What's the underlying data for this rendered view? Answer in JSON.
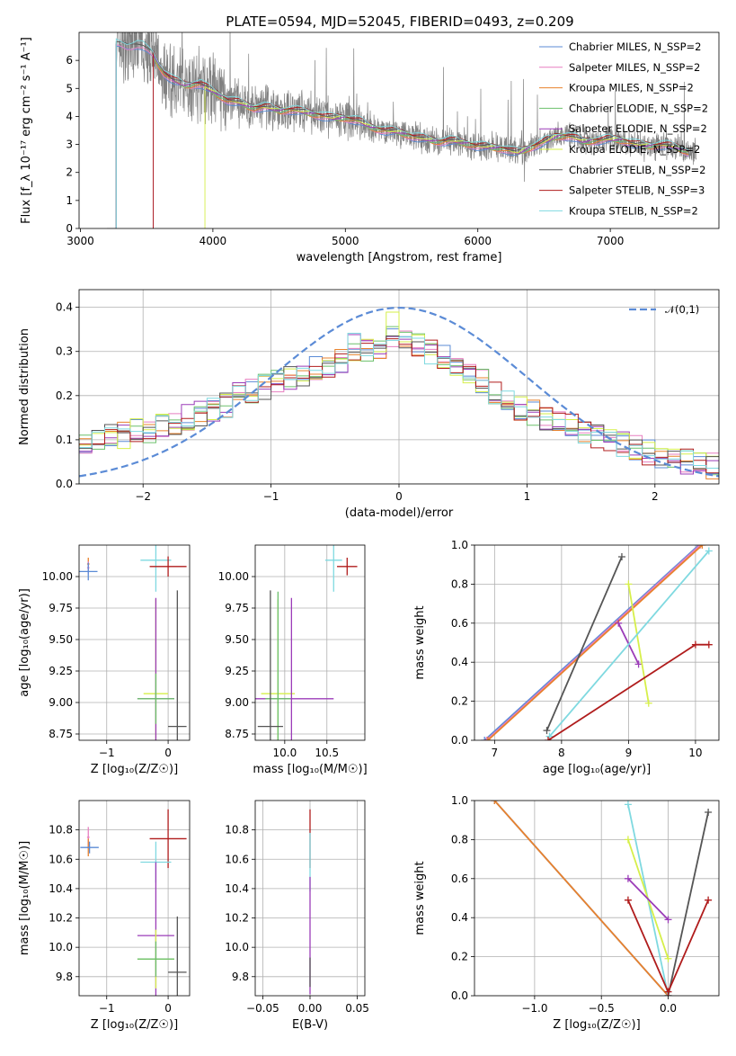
{
  "figure_title": "PLATE=0594, MJD=52045, FIBERID=0493, z=0.209",
  "colors": {
    "chabrier_miles": "#5b8bd6",
    "salpeter_miles": "#e87fc0",
    "kroupa_miles": "#e8822d",
    "chabrier_elodie": "#6cc06c",
    "salpeter_elodie": "#9b3cb8",
    "kroupa_elodie": "#d6ef4a",
    "chabrier_stelib": "#555555",
    "salpeter_stelib": "#b01c1c",
    "kroupa_stelib": "#7fd9e0",
    "data": "#808080",
    "normal": "#5b8bd6"
  },
  "chart_data": [
    {
      "id": "spectrum",
      "type": "line",
      "xlabel": "wavelength [Angstrom, rest frame]",
      "ylabel": "Flux [f_λ 10⁻¹⁷ erg cm⁻² s⁻¹ A⁻¹]",
      "xlim": [
        2990,
        7820
      ],
      "ylim": [
        0,
        7
      ],
      "xticks": [
        3000,
        4000,
        5000,
        6000,
        7000
      ],
      "yticks": [
        0,
        1,
        2,
        3,
        4,
        5,
        6
      ],
      "grid": false,
      "legend": "upper right",
      "series": [
        {
          "name": "Chabrier MILES, N_SSP=2",
          "ckey": "chabrier_miles"
        },
        {
          "name": "Salpeter MILES, N_SSP=2",
          "ckey": "salpeter_miles"
        },
        {
          "name": "Kroupa MILES, N_SSP=2",
          "ckey": "kroupa_miles"
        },
        {
          "name": "Chabrier ELODIE, N_SSP=2",
          "ckey": "chabrier_elodie"
        },
        {
          "name": "Salpeter ELODIE, N_SSP=2",
          "ckey": "salpeter_elodie"
        },
        {
          "name": "Kroupa ELODIE, N_SSP=2",
          "ckey": "kroupa_elodie"
        },
        {
          "name": "Chabrier STELIB, N_SSP=2",
          "ckey": "chabrier_stelib"
        },
        {
          "name": "Salpeter STELIB, N_SSP=3",
          "ckey": "salpeter_stelib"
        },
        {
          "name": "Kroupa STELIB, N_SSP=2",
          "ckey": "kroupa_stelib"
        }
      ],
      "model_continuum": [
        [
          3270,
          6.6
        ],
        [
          3350,
          6.5
        ],
        [
          3450,
          6.6
        ],
        [
          3550,
          6.2
        ],
        [
          3620,
          5.6
        ],
        [
          3700,
          5.3
        ],
        [
          3800,
          5.1
        ],
        [
          3900,
          5.2
        ],
        [
          4000,
          4.9
        ],
        [
          4100,
          4.6
        ],
        [
          4200,
          4.5
        ],
        [
          4300,
          4.3
        ],
        [
          4400,
          4.35
        ],
        [
          4500,
          4.2
        ],
        [
          4600,
          4.25
        ],
        [
          4700,
          4.15
        ],
        [
          4800,
          4.05
        ],
        [
          4900,
          3.95
        ],
        [
          5000,
          3.95
        ],
        [
          5100,
          3.85
        ],
        [
          5200,
          3.6
        ],
        [
          5300,
          3.5
        ],
        [
          5400,
          3.45
        ],
        [
          5500,
          3.3
        ],
        [
          5600,
          3.2
        ],
        [
          5700,
          3.1
        ],
        [
          5800,
          3.15
        ],
        [
          5900,
          3.05
        ],
        [
          6000,
          2.95
        ],
        [
          6100,
          2.9
        ],
        [
          6200,
          2.85
        ],
        [
          6300,
          2.7
        ],
        [
          6400,
          2.9
        ],
        [
          6500,
          3.1
        ],
        [
          6600,
          3.3
        ],
        [
          6700,
          3.3
        ],
        [
          6800,
          3.1
        ],
        [
          6900,
          3.15
        ],
        [
          7000,
          3.2
        ],
        [
          7100,
          3.15
        ],
        [
          7200,
          3.0
        ],
        [
          7300,
          2.95
        ],
        [
          7400,
          3.0
        ],
        [
          7500,
          2.9
        ],
        [
          7600,
          2.7
        ]
      ],
      "model_starts": [
        3270,
        3270,
        3550,
        3550,
        3550,
        3940,
        3270,
        3550,
        3270
      ]
    },
    {
      "id": "residuals",
      "type": "histogram",
      "xlabel": "(data-model)/error",
      "ylabel": "Normed distribution",
      "xlim": [
        -2.5,
        2.5
      ],
      "ylim": [
        0,
        0.44
      ],
      "xticks": [
        -2,
        -1,
        0,
        1,
        2
      ],
      "yticks": [
        0.0,
        0.1,
        0.2,
        0.3,
        0.4
      ],
      "grid": true,
      "bins": 50,
      "reference": {
        "label": "𝒩(0,1)",
        "mean": 0,
        "sigma": 1
      },
      "histogram_envelope": [
        0.09,
        0.1,
        0.11,
        0.11,
        0.12,
        0.12,
        0.13,
        0.14,
        0.15,
        0.16,
        0.17,
        0.18,
        0.2,
        0.21,
        0.22,
        0.23,
        0.24,
        0.25,
        0.26,
        0.27,
        0.28,
        0.29,
        0.3,
        0.31,
        0.32,
        0.32,
        0.31,
        0.3,
        0.29,
        0.27,
        0.25,
        0.23,
        0.21,
        0.19,
        0.17,
        0.16,
        0.15,
        0.14,
        0.13,
        0.12,
        0.11,
        0.1,
        0.09,
        0.08,
        0.07,
        0.06,
        0.06,
        0.05,
        0.05,
        0.04
      ]
    },
    {
      "id": "age_vs_Z",
      "type": "scatter",
      "xlabel": "Z [log₁₀(Z/Z☉)]",
      "ylabel": "age  [log₁₀(age/yr)]",
      "xlim": [
        -1.45,
        0.35
      ],
      "ylim": [
        8.7,
        10.25
      ],
      "xticks": [
        -1,
        0
      ],
      "yticks": [
        8.75,
        9.0,
        9.25,
        9.5,
        9.75,
        10.0
      ],
      "grid": true,
      "points": [
        {
          "ckey": "kroupa_miles",
          "x": -1.3,
          "y": 10.1,
          "xerr": 0.02,
          "yerr": 0.05
        },
        {
          "ckey": "salpeter_miles",
          "x": -1.3,
          "y": 10.07,
          "xerr": 0.02,
          "yerr": 0.05
        },
        {
          "ckey": "chabrier_miles",
          "x": -1.3,
          "y": 10.04,
          "xerr": 0.15,
          "yerr": 0.07
        },
        {
          "ckey": "kroupa_stelib",
          "x": -0.2,
          "y": 10.13,
          "xerr": 0.25,
          "yerr": 0.25
        },
        {
          "ckey": "salpeter_stelib",
          "x": 0.0,
          "y": 10.08,
          "xerr": 0.3,
          "yerr": 0.08
        },
        {
          "ckey": "kroupa_elodie",
          "x": -0.2,
          "y": 9.07,
          "xerr": 0.2,
          "yerr": 0.75
        },
        {
          "ckey": "salpeter_elodie",
          "x": -0.2,
          "y": 9.03,
          "xerr": 0.3,
          "yerr": 0.8
        },
        {
          "ckey": "chabrier_elodie",
          "x": -0.2,
          "y": 9.03,
          "xerr": 0.3,
          "yerr": 0.2
        },
        {
          "ckey": "chabrier_stelib",
          "x": 0.15,
          "y": 8.81,
          "xerr": 0.15,
          "yerr": 1.08
        }
      ]
    },
    {
      "id": "age_vs_mass",
      "type": "scatter",
      "xlabel": "mass [log₁₀(M/M☉)]",
      "ylabel": "",
      "xlim": [
        9.65,
        10.95
      ],
      "ylim": [
        8.7,
        10.25
      ],
      "xticks": [
        10.0,
        10.5
      ],
      "yticks": [
        8.75,
        9.0,
        9.25,
        9.5,
        9.75,
        10.0
      ],
      "grid": true,
      "points": [
        {
          "ckey": "kroupa_stelib",
          "x": 10.58,
          "y": 10.13,
          "xerr": 0.1,
          "yerr": 0.25
        },
        {
          "ckey": "salpeter_stelib",
          "x": 10.74,
          "y": 10.08,
          "xerr": 0.12,
          "yerr": 0.07
        },
        {
          "ckey": "kroupa_elodie",
          "x": 9.92,
          "y": 9.07,
          "xerr": 0.2,
          "yerr": 0.75
        },
        {
          "ckey": "salpeter_elodie",
          "x": 10.08,
          "y": 9.03,
          "xerr": 0.5,
          "yerr": 0.8
        },
        {
          "ckey": "chabrier_elodie",
          "x": 9.92,
          "y": 9.03,
          "xerr": 0.15,
          "yerr": 0.85
        },
        {
          "ckey": "chabrier_stelib",
          "x": 9.83,
          "y": 8.81,
          "xerr": 0.15,
          "yerr": 1.08
        }
      ]
    },
    {
      "id": "weight_vs_age",
      "type": "line",
      "xlabel": "age  [log₁₀(age/yr)]",
      "ylabel": "mass weight",
      "xlim": [
        6.7,
        10.35
      ],
      "ylim": [
        0,
        1
      ],
      "xticks": [
        7,
        8,
        9,
        10
      ],
      "yticks": [
        0.0,
        0.2,
        0.4,
        0.6,
        0.8,
        1.0
      ],
      "grid": true,
      "series": [
        {
          "ckey": "chabrier_miles",
          "x": [
            6.85,
            10.05
          ],
          "y": [
            0.0,
            1.0
          ]
        },
        {
          "ckey": "salpeter_miles",
          "x": [
            6.88,
            10.07
          ],
          "y": [
            0.0,
            1.0
          ]
        },
        {
          "ckey": "kroupa_miles",
          "x": [
            6.9,
            10.1
          ],
          "y": [
            0.0,
            1.0
          ]
        },
        {
          "ckey": "chabrier_stelib",
          "x": [
            7.78,
            8.9
          ],
          "y": [
            0.05,
            0.94
          ]
        },
        {
          "ckey": "salpeter_elodie",
          "x": [
            8.85,
            9.15
          ],
          "y": [
            0.6,
            0.39
          ]
        },
        {
          "ckey": "kroupa_elodie",
          "x": [
            9.0,
            9.3
          ],
          "y": [
            0.8,
            0.19
          ]
        },
        {
          "ckey": "kroupa_stelib",
          "x": [
            7.82,
            10.2
          ],
          "y": [
            0.02,
            0.97
          ]
        },
        {
          "ckey": "salpeter_stelib",
          "x": [
            7.8,
            10.0,
            10.2
          ],
          "y": [
            0.0,
            0.49,
            0.49
          ]
        }
      ]
    },
    {
      "id": "mass_vs_Z",
      "type": "scatter",
      "xlabel": "Z [log₁₀(Z/Z☉)]",
      "ylabel": "mass [log₁₀(M/M☉)]",
      "xlim": [
        -1.45,
        0.35
      ],
      "ylim": [
        9.67,
        11.0
      ],
      "xticks": [
        -1,
        0
      ],
      "yticks": [
        9.8,
        10.0,
        10.2,
        10.4,
        10.6,
        10.8
      ],
      "grid": true,
      "points": [
        {
          "ckey": "salpeter_miles",
          "x": -1.3,
          "y": 10.75,
          "xerr": 0.02,
          "yerr": 0.07
        },
        {
          "ckey": "kroupa_miles",
          "x": -1.3,
          "y": 10.68,
          "xerr": 0.02,
          "yerr": 0.06
        },
        {
          "ckey": "chabrier_miles",
          "x": -1.28,
          "y": 10.68,
          "xerr": 0.15,
          "yerr": 0.04
        },
        {
          "ckey": "salpeter_stelib",
          "x": 0.0,
          "y": 10.74,
          "xerr": 0.3,
          "yerr": 0.2
        },
        {
          "ckey": "kroupa_stelib",
          "x": -0.2,
          "y": 10.58,
          "xerr": 0.25,
          "yerr": 0.14
        },
        {
          "ckey": "salpeter_elodie",
          "x": -0.2,
          "y": 10.08,
          "xerr": 0.3,
          "yerr": 0.5
        },
        {
          "ckey": "kroupa_elodie",
          "x": -0.2,
          "y": 9.92,
          "xerr": 0.3,
          "yerr": 0.2
        },
        {
          "ckey": "chabrier_elodie",
          "x": -0.2,
          "y": 9.92,
          "xerr": 0.3,
          "yerr": 0.12
        },
        {
          "ckey": "chabrier_stelib",
          "x": 0.15,
          "y": 9.83,
          "xerr": 0.15,
          "yerr": 0.38
        }
      ]
    },
    {
      "id": "mass_vs_ebv",
      "type": "scatter",
      "xlabel": "E(B-V)",
      "ylabel": "",
      "xlim": [
        -0.058,
        0.058
      ],
      "ylim": [
        9.67,
        11.0
      ],
      "xticks": [
        -0.05,
        0.0,
        0.05
      ],
      "yticks": [
        9.8,
        10.0,
        10.2,
        10.4,
        10.6,
        10.8
      ],
      "grid": true,
      "points": [
        {
          "ckey": "salpeter_stelib",
          "x": 0.0,
          "y": 10.74,
          "xerr": 0,
          "yerr": 0.2
        },
        {
          "ckey": "kroupa_stelib",
          "x": 0.0,
          "y": 10.58,
          "xerr": 0,
          "yerr": 0.2
        },
        {
          "ckey": "salpeter_elodie",
          "x": 0.0,
          "y": 10.08,
          "xerr": 0,
          "yerr": 0.4
        },
        {
          "ckey": "chabrier_stelib",
          "x": 0.0,
          "y": 9.83,
          "xerr": 0,
          "yerr": 0.1
        }
      ]
    },
    {
      "id": "weight_vs_Z",
      "type": "line",
      "xlabel": "Z [log₁₀(Z/Z☉)]",
      "ylabel": "mass weight",
      "xlim": [
        -1.45,
        0.38
      ],
      "ylim": [
        0,
        1
      ],
      "xticks": [
        -1.0,
        -0.5,
        0.0
      ],
      "yticks": [
        0.0,
        0.2,
        0.4,
        0.6,
        0.8,
        1.0
      ],
      "grid": true,
      "series": [
        {
          "ckey": "chabrier_miles",
          "x": [
            -1.3,
            0.0
          ],
          "y": [
            1.0,
            0.0
          ]
        },
        {
          "ckey": "kroupa_miles",
          "x": [
            -1.3,
            0.0
          ],
          "y": [
            1.0,
            0.0
          ]
        },
        {
          "ckey": "kroupa_stelib",
          "x": [
            -0.3,
            0.0
          ],
          "y": [
            0.98,
            0.0
          ]
        },
        {
          "ckey": "chabrier_stelib",
          "x": [
            0.0,
            0.3
          ],
          "y": [
            0.0,
            0.94
          ]
        },
        {
          "ckey": "salpeter_stelib",
          "x": [
            -0.3,
            0.0,
            0.3
          ],
          "y": [
            0.49,
            0.02,
            0.49
          ]
        },
        {
          "ckey": "kroupa_elodie",
          "x": [
            -0.3,
            0.0
          ],
          "y": [
            0.8,
            0.19
          ]
        },
        {
          "ckey": "salpeter_elodie",
          "x": [
            -0.3,
            0.0
          ],
          "y": [
            0.6,
            0.39
          ]
        }
      ]
    }
  ]
}
